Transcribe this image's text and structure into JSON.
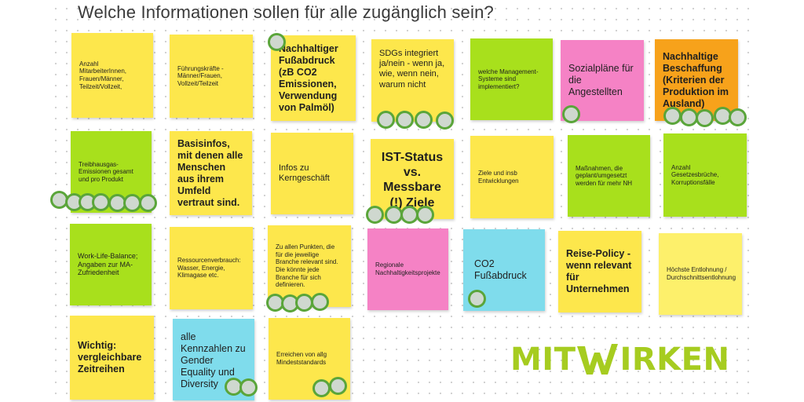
{
  "board": {
    "title": "Welche Informationen sollen für alle zugänglich sein?"
  },
  "colors": {
    "yellow": "#fde74c",
    "yellow_light": "#fdf06b",
    "green": "#a8e01c",
    "pink": "#f582c5",
    "orange": "#f7a21b",
    "cyan": "#7fdcec",
    "vote_border": "#5aa53a",
    "logo_green": "#a6cc20"
  },
  "notes": [
    {
      "id": "n01",
      "text": "Anzahl MitarbeiterInnen, Frauen/Männer, Teilzeit/Vollzeit,",
      "color": "yellow"
    },
    {
      "id": "n02",
      "text": "Führungskräfte - Männer/Frauen, Vollzeit/Teilzeit",
      "color": "yellow"
    },
    {
      "id": "n03",
      "text": "Nachhaltiger Fußabdruck (zB CO2 Emissionen, Verwendung von Palmöl)",
      "color": "yellow"
    },
    {
      "id": "n04",
      "text": "SDGs integriert ja/nein - wenn ja, wie, wenn nein, warum nicht",
      "color": "yellow"
    },
    {
      "id": "n05",
      "text": "welche Management-Systeme sind implementiert?",
      "color": "green"
    },
    {
      "id": "n06",
      "text": "Sozialpläne für die Angestellten",
      "color": "pink"
    },
    {
      "id": "n07",
      "text": "Nachhaltige Beschaffung (Kriterien der Produktion im Ausland)",
      "color": "orange"
    },
    {
      "id": "n08",
      "text": "Treibhausgas-Emissionen gesamt und pro Produkt",
      "color": "green"
    },
    {
      "id": "n09",
      "text": "Basisinfos, mit denen alle Menschen aus ihrem Umfeld vertraut sind.",
      "color": "yellow"
    },
    {
      "id": "n10",
      "text": "Infos zu Kerngeschäft",
      "color": "yellow"
    },
    {
      "id": "n11",
      "text": "IST-Status vs. Messbare (!) Ziele",
      "color": "yellow"
    },
    {
      "id": "n12",
      "text": "Ziele und insb Entwicklungen",
      "color": "yellow"
    },
    {
      "id": "n13",
      "text": "Maßnahmen, die geplant/umgesetzt werden für mehr NH",
      "color": "green"
    },
    {
      "id": "n14",
      "text": "Anzahl Gesetzesbrüche, Korruptionsfälle",
      "color": "green"
    },
    {
      "id": "n15",
      "text": "Work-Life-Balance; Angaben zur MA-Zufriedenheit",
      "color": "green"
    },
    {
      "id": "n16",
      "text": "Ressourcenverbrauch: Wasser, Energie, Klimagase etc.",
      "color": "yellow"
    },
    {
      "id": "n17",
      "text": "Zu allen Punkten, die für die jeweilige Branche relevant sind. Die könnte jede Branche für sich definieren.",
      "color": "yellow"
    },
    {
      "id": "n18",
      "text": "Regionale Nachhaltigkeitsprojekte",
      "color": "pink"
    },
    {
      "id": "n19",
      "text": "CO2 Fußabdruck",
      "color": "cyan"
    },
    {
      "id": "n20",
      "text": "Reise-Policy - wenn relevant für Unternehmen",
      "color": "yellow"
    },
    {
      "id": "n21",
      "text": "Höchste Entlohnung / Durchschnittsentlohnung",
      "color": "yellow"
    },
    {
      "id": "n22",
      "text": "Wichtig: vergleichbare Zeitreihen",
      "color": "yellow"
    },
    {
      "id": "n23",
      "text": "alle Kennzahlen zu Gender Equality und Diversity",
      "color": "cyan"
    },
    {
      "id": "n24",
      "text": "Erreichen von allg Mindeststandards",
      "color": "yellow"
    }
  ],
  "logo": {
    "part1": "MIT",
    "part2": "IRKEN"
  }
}
